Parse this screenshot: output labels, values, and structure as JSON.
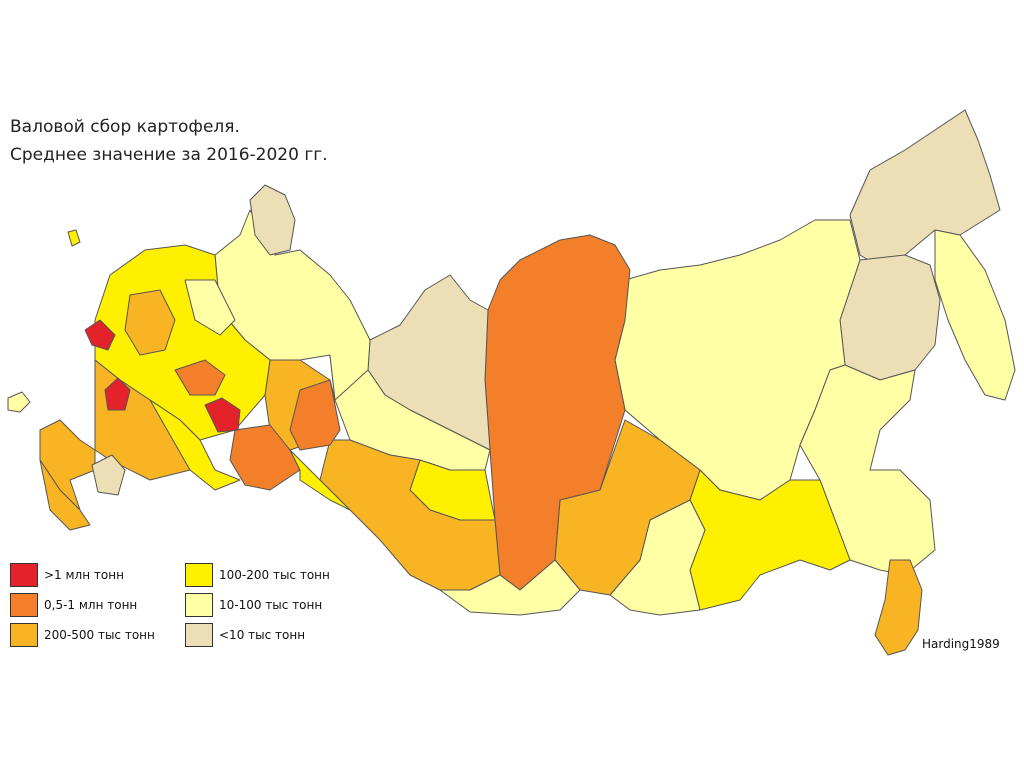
{
  "title": {
    "line1": "Валовой сбор картофеля.",
    "line2": "Среднее значение за 2016-2020 гг."
  },
  "legend": [
    {
      "label": ">1 млн тонн",
      "color": "#e3222a"
    },
    {
      "label": "0,5-1 млн тонн",
      "color": "#f47f2a"
    },
    {
      "label": "200-500 тыс тонн",
      "color": "#f8b422"
    },
    {
      "label": "100-200 тыс тонн",
      "color": "#fff000"
    },
    {
      "label": "10-100 тыс тонн",
      "color": "#ffffa6"
    },
    {
      "label": "<10 тыс тонн",
      "color": "#ecdfb6"
    }
  ],
  "credit": "Harding1989"
}
